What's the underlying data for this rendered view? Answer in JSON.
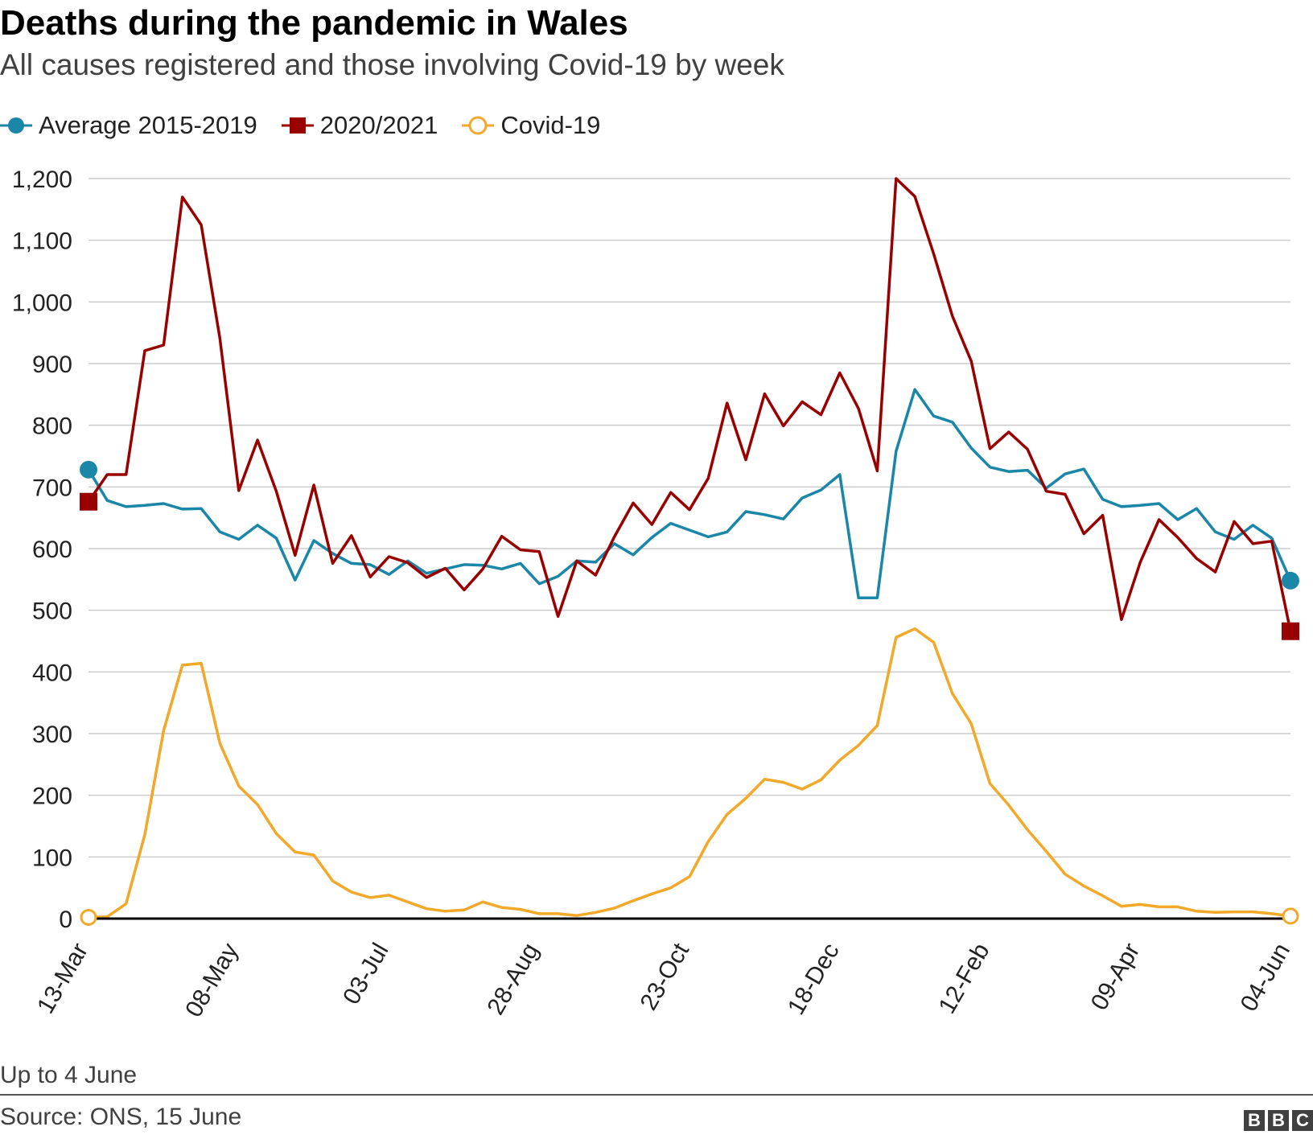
{
  "title": "Deaths during the pandemic in Wales",
  "subtitle": "All causes registered and those involving Covid-19 by week",
  "legend": [
    {
      "label": "Average 2015-2019",
      "color": "#1a86a8",
      "marker": "filled-circle"
    },
    {
      "label": "2020/2021",
      "color": "#990000",
      "marker": "filled-square"
    },
    {
      "label": "Covid-19",
      "color": "#f2a828",
      "marker": "open-circle"
    }
  ],
  "note": "Up to 4 June",
  "source": "Source: ONS, 15 June",
  "logo": [
    "B",
    "B",
    "C"
  ],
  "chart_data": {
    "type": "line",
    "title": "Deaths during the pandemic in Wales",
    "xlabel": "",
    "ylabel": "",
    "ylim": [
      0,
      1200
    ],
    "yticks": [
      0,
      100,
      200,
      300,
      400,
      500,
      600,
      700,
      800,
      900,
      1000,
      1100,
      1200
    ],
    "ytick_labels": [
      "0",
      "100",
      "200",
      "300",
      "400",
      "500",
      "600",
      "700",
      "800",
      "900",
      "1,000",
      "1,100",
      "1,200"
    ],
    "xtick_labels": [
      {
        "index": 0,
        "label": "13-Mar"
      },
      {
        "index": 8,
        "label": "08-May"
      },
      {
        "index": 16,
        "label": "03-Jul"
      },
      {
        "index": 24,
        "label": "28-Aug"
      },
      {
        "index": 32,
        "label": "23-Oct"
      },
      {
        "index": 40,
        "label": "18-Dec"
      },
      {
        "index": 48,
        "label": "12-Feb"
      },
      {
        "index": 56,
        "label": "09-Apr"
      },
      {
        "index": 64,
        "label": "04-Jun"
      }
    ],
    "grid": true,
    "series": [
      {
        "name": "Average 2015-2019",
        "color": "#1a86a8",
        "values": [
          728,
          678,
          668,
          670,
          673,
          664,
          665,
          627,
          615,
          638,
          617,
          549,
          613,
          592,
          576,
          574,
          558,
          580,
          560,
          567,
          574,
          573,
          567,
          576,
          543,
          555,
          580,
          578,
          608,
          590,
          618,
          641,
          630,
          619,
          627,
          660,
          655,
          648,
          682,
          695,
          720,
          520,
          520,
          758,
          858,
          815,
          805,
          763,
          732,
          725,
          727,
          698,
          721,
          729,
          680,
          668,
          670,
          673,
          647,
          665,
          627,
          615,
          638,
          617,
          548
        ]
      },
      {
        "name": "2020/2021",
        "color": "#990000",
        "values": [
          676,
          720,
          720,
          921,
          930,
          1170,
          1125,
          940,
          694,
          776,
          693,
          589,
          703,
          576,
          621,
          554,
          587,
          577,
          553,
          568,
          533,
          567,
          620,
          598,
          595,
          490,
          580,
          557,
          619,
          674,
          639,
          691,
          663,
          714,
          836,
          744,
          851,
          799,
          838,
          817,
          885,
          827,
          726,
          1200,
          1171,
          1078,
          977,
          904,
          762,
          789,
          761,
          693,
          688,
          624,
          654,
          485,
          578,
          647,
          618,
          584,
          562,
          644,
          608,
          612,
          466
        ]
      },
      {
        "name": "Covid-19",
        "color": "#f2a828",
        "values": [
          2,
          3,
          24,
          136,
          305,
          411,
          414,
          284,
          215,
          185,
          138,
          108,
          103,
          61,
          43,
          34,
          38,
          27,
          16,
          12,
          14,
          27,
          18,
          15,
          8,
          8,
          5,
          10,
          17,
          29,
          40,
          50,
          68,
          125,
          169,
          195,
          226,
          221,
          210,
          225,
          257,
          281,
          313,
          456,
          470,
          448,
          365,
          316,
          219,
          184,
          144,
          109,
          72,
          53,
          37,
          20,
          23,
          19,
          19,
          12,
          10,
          11,
          11,
          8,
          4
        ]
      }
    ]
  }
}
